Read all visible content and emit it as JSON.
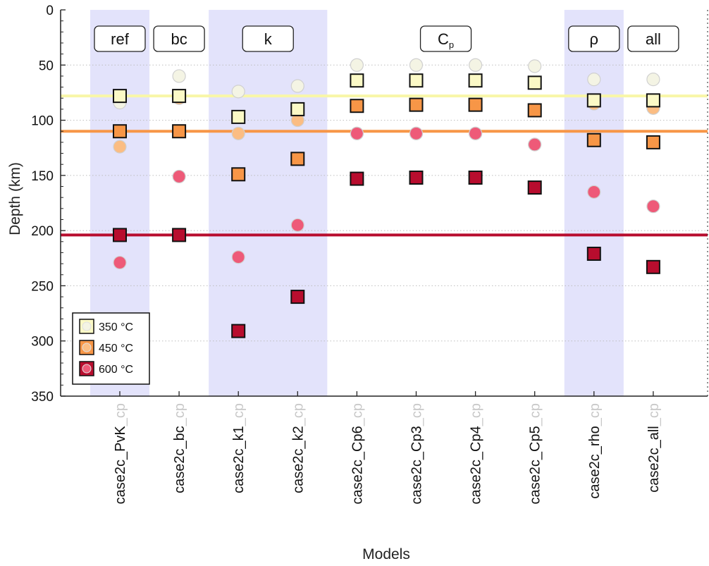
{
  "chart_data": {
    "type": "scatter",
    "xlabel": "Models",
    "ylabel": "Depth (km)",
    "ylim": [
      0,
      350
    ],
    "y_inverted": true,
    "yticks": [
      0,
      50,
      100,
      150,
      200,
      250,
      300,
      350
    ],
    "grid": "horizontal dotted",
    "legend_position": "bottom-left",
    "categories": [
      {
        "main": "case2c_PvK",
        "suffix": "_cp"
      },
      {
        "main": "case2c_bc",
        "suffix": "_cp"
      },
      {
        "main": "case2c_k1",
        "suffix": "_cp"
      },
      {
        "main": "case2c_k2",
        "suffix": "_cp"
      },
      {
        "main": "case2c_Cp6",
        "suffix": "_cp"
      },
      {
        "main": "case2c_Cp3",
        "suffix": "_cp"
      },
      {
        "main": "case2c_Cp4",
        "suffix": "_cp"
      },
      {
        "main": "case2c_Cp5",
        "suffix": "_cp"
      },
      {
        "main": "case2c_rho",
        "suffix": "_cp"
      },
      {
        "main": "case2c_all",
        "suffix": "_cp"
      }
    ],
    "groups": [
      {
        "label": "ref",
        "start": 0,
        "end": 0,
        "shaded": true
      },
      {
        "label": "bc",
        "start": 1,
        "end": 1,
        "shaded": false
      },
      {
        "label": "k",
        "start": 2,
        "end": 3,
        "shaded": true
      },
      {
        "label": "C",
        "sub": "p",
        "start": 4,
        "end": 7,
        "shaded": false
      },
      {
        "label": "ρ",
        "start": 8,
        "end": 8,
        "shaded": true
      },
      {
        "label": "all",
        "start": 9,
        "end": 9,
        "shaded": false
      }
    ],
    "series": [
      {
        "name": "350 °C",
        "color": "#fbf9c6",
        "reference_line": 78,
        "squares": [
          78,
          78,
          97,
          90,
          64,
          64,
          64,
          66,
          82,
          82
        ],
        "circles": [
          84,
          60,
          74,
          69,
          50,
          50,
          50,
          51,
          63,
          63
        ]
      },
      {
        "name": "450 °C",
        "color": "#f79647",
        "reference_line": 110,
        "squares": [
          110,
          110,
          149,
          135,
          87,
          86,
          86,
          91,
          118,
          120
        ],
        "circles": [
          124,
          80,
          112,
          100,
          112,
          112,
          112,
          122,
          85,
          89
        ]
      },
      {
        "name": "600 °C",
        "color": "#b80d2e",
        "reference_line": 204,
        "squares": [
          204,
          204,
          291,
          260,
          153,
          152,
          152,
          161,
          221,
          233
        ],
        "circles": [
          229,
          151,
          224,
          195,
          112,
          112,
          112,
          122,
          165,
          178
        ]
      }
    ],
    "circle_color": "#ee5a78"
  }
}
